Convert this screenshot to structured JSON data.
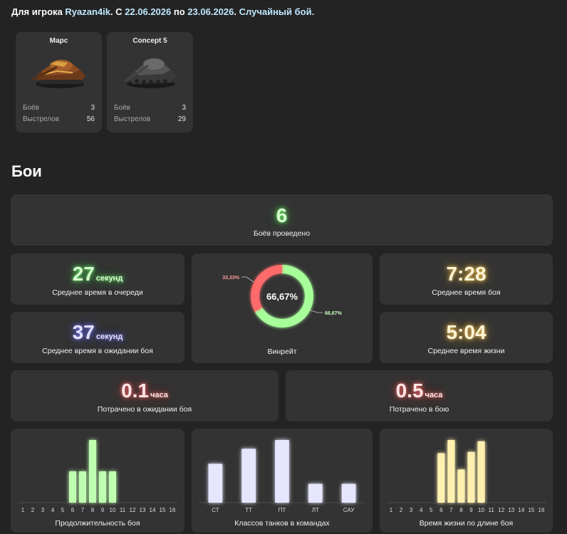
{
  "header": {
    "prefix": "Для игрока ",
    "player": "Ryazan4ik",
    "mid1": ". С ",
    "from": "22.06.2026",
    "mid2": " по ",
    "to": "23.06.2026",
    "mid3": ". ",
    "mode": "Случайный бой."
  },
  "tanks": [
    {
      "name": "Марс",
      "battles_label": "Боёв",
      "battles": "3",
      "shots_label": "Выстрелов",
      "shots": "56"
    },
    {
      "name": "Concept 5",
      "battles_label": "Боёв",
      "battles": "3",
      "shots_label": "Выстрелов",
      "shots": "29"
    }
  ],
  "section_title": "Бои",
  "stats": {
    "battles": {
      "value": "6",
      "label": "Боёв проведено"
    },
    "queue": {
      "value": "27",
      "unit": "секунд",
      "label": "Среднее время в очереди"
    },
    "wait": {
      "value": "37",
      "unit": "секунд",
      "label": "Среднее время в ожидании боя"
    },
    "avg_battle": {
      "value": "7:28",
      "label": "Среднее время боя"
    },
    "avg_life": {
      "value": "5:04",
      "label": "Среднее время жизни"
    },
    "spent_wait": {
      "value": "0.1",
      "unit": "часа",
      "label": "Потрачено в ожидании боя"
    },
    "spent_battle": {
      "value": "0.5",
      "unit": "часа",
      "label": "Потрачено в бою"
    }
  },
  "winrate": {
    "center": "66,67%",
    "label": "Винрейт",
    "win_pct": 66.67,
    "loss_pct": 33.33,
    "win_text": "66,67%",
    "loss_text": "33,33%",
    "win_color": "#a6ff99",
    "loss_color": "#ff6b6b"
  },
  "colors": {
    "green": "#bfffb0",
    "blue": "#e6e6ff",
    "gold": "#fff0b0"
  },
  "chart_data": [
    {
      "type": "bar",
      "xlabel": "Продолжительность боя",
      "categories": [
        "1",
        "2",
        "3",
        "4",
        "5",
        "6",
        "7",
        "8",
        "9",
        "10",
        "11",
        "12",
        "13",
        "14",
        "15",
        "16"
      ],
      "values": [
        0,
        0,
        0,
        0,
        0,
        1,
        1,
        2,
        1,
        1,
        0,
        0,
        0,
        0,
        0,
        0
      ],
      "ylim": [
        0,
        2
      ]
    },
    {
      "type": "bar",
      "xlabel": "Классов танков в командах",
      "categories": [
        "СТ",
        "ТТ",
        "ПТ",
        "ЛТ",
        "САУ"
      ],
      "values": [
        31,
        43,
        50,
        15,
        15
      ],
      "ylim": [
        0,
        50
      ]
    },
    {
      "type": "bar",
      "xlabel": "Время жизни по длине боя",
      "categories": [
        "1",
        "2",
        "3",
        "4",
        "5",
        "6",
        "7",
        "8",
        "9",
        "10",
        "11",
        "12",
        "13",
        "14",
        "15",
        "16"
      ],
      "values": [
        0,
        0,
        0,
        0,
        0,
        0.79,
        1,
        0.53,
        0.81,
        0.98,
        0,
        0,
        0,
        0,
        0,
        0
      ],
      "ylim": [
        0,
        1
      ]
    }
  ]
}
